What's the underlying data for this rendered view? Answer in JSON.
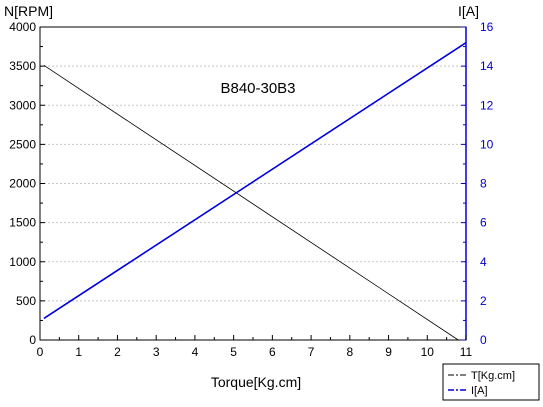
{
  "chart_data": {
    "type": "line",
    "title": "B840-30B3",
    "xlabel": "Torque[Kg.cm]",
    "ylabel_left": "N[RPM]",
    "ylabel_right": "I[A]",
    "xlim": [
      0,
      11
    ],
    "ylim_left": [
      0,
      4000
    ],
    "ylim_right": [
      0,
      16
    ],
    "x_ticks": [
      "0",
      "1",
      "2",
      "3",
      "4",
      "5",
      "6",
      "7",
      "8",
      "9",
      "10",
      "11"
    ],
    "y_ticks_left": [
      "0",
      "500",
      "1000",
      "1500",
      "2000",
      "2500",
      "3000",
      "3500",
      "4000"
    ],
    "y_ticks_right": [
      "0",
      "2",
      "4",
      "6",
      "8",
      "10",
      "12",
      "14",
      "16"
    ],
    "grid": true,
    "legend_position": "bottom-right",
    "series": [
      {
        "name": "T[Kg.cm]",
        "axis": "left",
        "color": "#000000",
        "x": [
          0.1,
          10.8
        ],
        "y": [
          3510,
          0
        ]
      },
      {
        "name": "I[A]",
        "axis": "right",
        "color": "#0000dd",
        "x": [
          0.1,
          11.0
        ],
        "y": [
          1.1,
          15.2
        ]
      }
    ]
  }
}
